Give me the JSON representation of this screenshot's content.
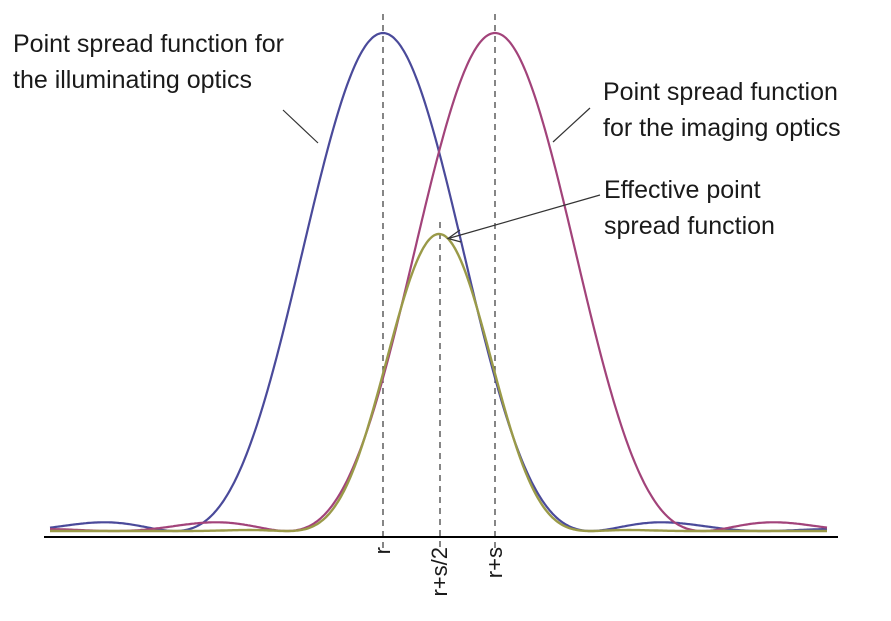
{
  "annotations": {
    "illuminating": [
      "Point spread function for",
      "the illuminating optics"
    ],
    "imaging": [
      "Point spread function",
      "for the imaging optics"
    ],
    "effective": [
      "Effective point",
      "spread function"
    ]
  },
  "axis_markers": [
    "r",
    "r+s/2",
    "r+s"
  ],
  "colors": {
    "illuminating": "#4a4a9a",
    "imaging": "#a2437a",
    "effective": "#9a9a48",
    "axis": "#000000",
    "guide": "#444444"
  }
}
